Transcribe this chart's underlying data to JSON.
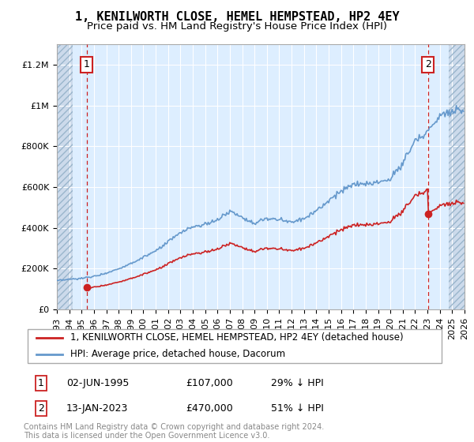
{
  "title": "1, KENILWORTH CLOSE, HEMEL HEMPSTEAD, HP2 4EY",
  "subtitle": "Price paid vs. HM Land Registry's House Price Index (HPI)",
  "xlim": [
    1993.0,
    2026.0
  ],
  "ylim": [
    0,
    1300000
  ],
  "yticks": [
    0,
    200000,
    400000,
    600000,
    800000,
    1000000,
    1200000
  ],
  "ytick_labels": [
    "£0",
    "£200K",
    "£400K",
    "£600K",
    "£800K",
    "£1M",
    "£1.2M"
  ],
  "xticks": [
    1993,
    1994,
    1995,
    1996,
    1997,
    1998,
    1999,
    2000,
    2001,
    2002,
    2003,
    2004,
    2005,
    2006,
    2007,
    2008,
    2009,
    2010,
    2011,
    2012,
    2013,
    2014,
    2015,
    2016,
    2017,
    2018,
    2019,
    2020,
    2021,
    2022,
    2023,
    2024,
    2025,
    2026
  ],
  "hpi_color": "#6699cc",
  "price_color": "#cc2222",
  "bg_plot": "#ddeeff",
  "grid_color": "#ffffff",
  "sale1_x": 1995.42,
  "sale1_y": 107000,
  "sale1_label": "1",
  "sale2_x": 2023.04,
  "sale2_y": 470000,
  "sale2_label": "2",
  "legend_line1": "1, KENILWORTH CLOSE, HEMEL HEMPSTEAD, HP2 4EY (detached house)",
  "legend_line2": "HPI: Average price, detached house, Dacorum",
  "annotation1_date": "02-JUN-1995",
  "annotation1_price": "£107,000",
  "annotation1_hpi": "29% ↓ HPI",
  "annotation2_date": "13-JAN-2023",
  "annotation2_price": "£470,000",
  "annotation2_hpi": "51% ↓ HPI",
  "footer": "Contains HM Land Registry data © Crown copyright and database right 2024.\nThis data is licensed under the Open Government Licence v3.0.",
  "title_fontsize": 11,
  "subtitle_fontsize": 9.5,
  "tick_fontsize": 8,
  "legend_fontsize": 8.5,
  "annotation_fontsize": 9
}
